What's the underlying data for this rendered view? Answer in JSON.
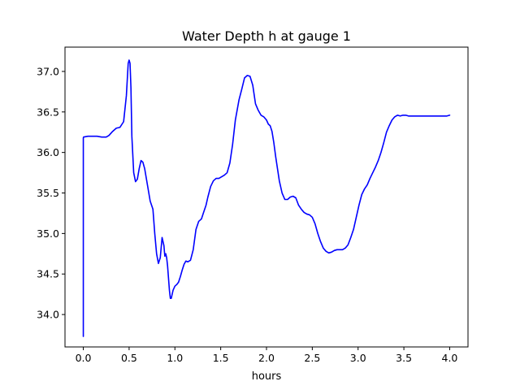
{
  "chart_data": {
    "type": "line",
    "title": "Water Depth h at gauge 1",
    "xlabel": "hours",
    "ylabel": "",
    "xlim": [
      -0.2,
      4.2
    ],
    "ylim": [
      33.6,
      37.3
    ],
    "x_ticks": [
      0.0,
      0.5,
      1.0,
      1.5,
      2.0,
      2.5,
      3.0,
      3.5,
      4.0
    ],
    "x_tick_labels": [
      "0.0",
      "0.5",
      "1.0",
      "1.5",
      "2.0",
      "2.5",
      "3.0",
      "3.5",
      "4.0"
    ],
    "y_ticks": [
      34.0,
      34.5,
      35.0,
      35.5,
      36.0,
      36.5,
      37.0
    ],
    "y_tick_labels": [
      "34.0",
      "34.5",
      "35.0",
      "35.5",
      "36.0",
      "36.5",
      "37.0"
    ],
    "grid": false,
    "legend": "none",
    "colors": {
      "line": "#0000ff",
      "axes": "#000000",
      "background": "#ffffff"
    },
    "series": [
      {
        "x": [
          0.0,
          0.0,
          0.003,
          0.05,
          0.1,
          0.15,
          0.2,
          0.25,
          0.28,
          0.32,
          0.36,
          0.4,
          0.44,
          0.47,
          0.49,
          0.5,
          0.51,
          0.52,
          0.53,
          0.55,
          0.57,
          0.59,
          0.61,
          0.63,
          0.65,
          0.67,
          0.7,
          0.73,
          0.76,
          0.78,
          0.8,
          0.82,
          0.84,
          0.86,
          0.88,
          0.89,
          0.9,
          0.91,
          0.92,
          0.93,
          0.94,
          0.95,
          0.96,
          0.97,
          0.98,
          1.0,
          1.02,
          1.04,
          1.06,
          1.08,
          1.1,
          1.12,
          1.14,
          1.17,
          1.2,
          1.23,
          1.26,
          1.29,
          1.31,
          1.34,
          1.36,
          1.39,
          1.42,
          1.45,
          1.48,
          1.51,
          1.54,
          1.57,
          1.6,
          1.63,
          1.66,
          1.7,
          1.73,
          1.76,
          1.79,
          1.82,
          1.85,
          1.88,
          1.91,
          1.94,
          1.97,
          2.0,
          2.02,
          2.04,
          2.06,
          2.08,
          2.1,
          2.12,
          2.14,
          2.17,
          2.2,
          2.23,
          2.26,
          2.29,
          2.32,
          2.35,
          2.38,
          2.41,
          2.44,
          2.47,
          2.5,
          2.53,
          2.56,
          2.59,
          2.62,
          2.65,
          2.68,
          2.71,
          2.74,
          2.77,
          2.8,
          2.83,
          2.86,
          2.89,
          2.92,
          2.95,
          2.98,
          3.01,
          3.04,
          3.07,
          3.1,
          3.13,
          3.16,
          3.19,
          3.22,
          3.25,
          3.28,
          3.31,
          3.34,
          3.37,
          3.4,
          3.43,
          3.46,
          3.49,
          3.52,
          3.55,
          3.58,
          3.61,
          3.64,
          3.67,
          3.7,
          3.73,
          3.76,
          3.79,
          3.82,
          3.85,
          3.88,
          3.91,
          3.94,
          3.97,
          4.0
        ],
        "y": [
          33.73,
          36.18,
          36.19,
          36.2,
          36.2,
          36.2,
          36.19,
          36.19,
          36.21,
          36.26,
          36.3,
          36.31,
          36.38,
          36.7,
          37.1,
          37.14,
          37.1,
          36.8,
          36.2,
          35.75,
          35.64,
          35.67,
          35.8,
          35.9,
          35.88,
          35.8,
          35.6,
          35.4,
          35.3,
          35.0,
          34.75,
          34.63,
          34.7,
          34.95,
          34.85,
          34.72,
          34.75,
          34.7,
          34.6,
          34.45,
          34.3,
          34.2,
          34.2,
          34.25,
          34.3,
          34.35,
          34.37,
          34.4,
          34.47,
          34.55,
          34.62,
          34.66,
          34.65,
          34.67,
          34.8,
          35.05,
          35.15,
          35.18,
          35.25,
          35.35,
          35.45,
          35.58,
          35.65,
          35.68,
          35.68,
          35.7,
          35.72,
          35.75,
          35.87,
          36.1,
          36.4,
          36.65,
          36.78,
          36.92,
          36.95,
          36.94,
          36.83,
          36.6,
          36.52,
          36.46,
          36.44,
          36.4,
          36.35,
          36.33,
          36.26,
          36.12,
          35.95,
          35.8,
          35.65,
          35.5,
          35.42,
          35.42,
          35.45,
          35.46,
          35.44,
          35.35,
          35.3,
          35.26,
          35.24,
          35.23,
          35.2,
          35.12,
          35.0,
          34.9,
          34.82,
          34.78,
          34.76,
          34.77,
          34.79,
          34.8,
          34.8,
          34.8,
          34.82,
          34.86,
          34.95,
          35.05,
          35.2,
          35.35,
          35.48,
          35.55,
          35.6,
          35.68,
          35.75,
          35.82,
          35.9,
          36.0,
          36.12,
          36.25,
          36.33,
          36.4,
          36.44,
          36.46,
          36.45,
          36.46,
          36.46,
          36.45,
          36.45,
          36.45,
          36.45,
          36.45,
          36.45,
          36.45,
          36.45,
          36.45,
          36.45,
          36.45,
          36.45,
          36.45,
          36.45,
          36.45,
          36.46
        ]
      }
    ]
  }
}
